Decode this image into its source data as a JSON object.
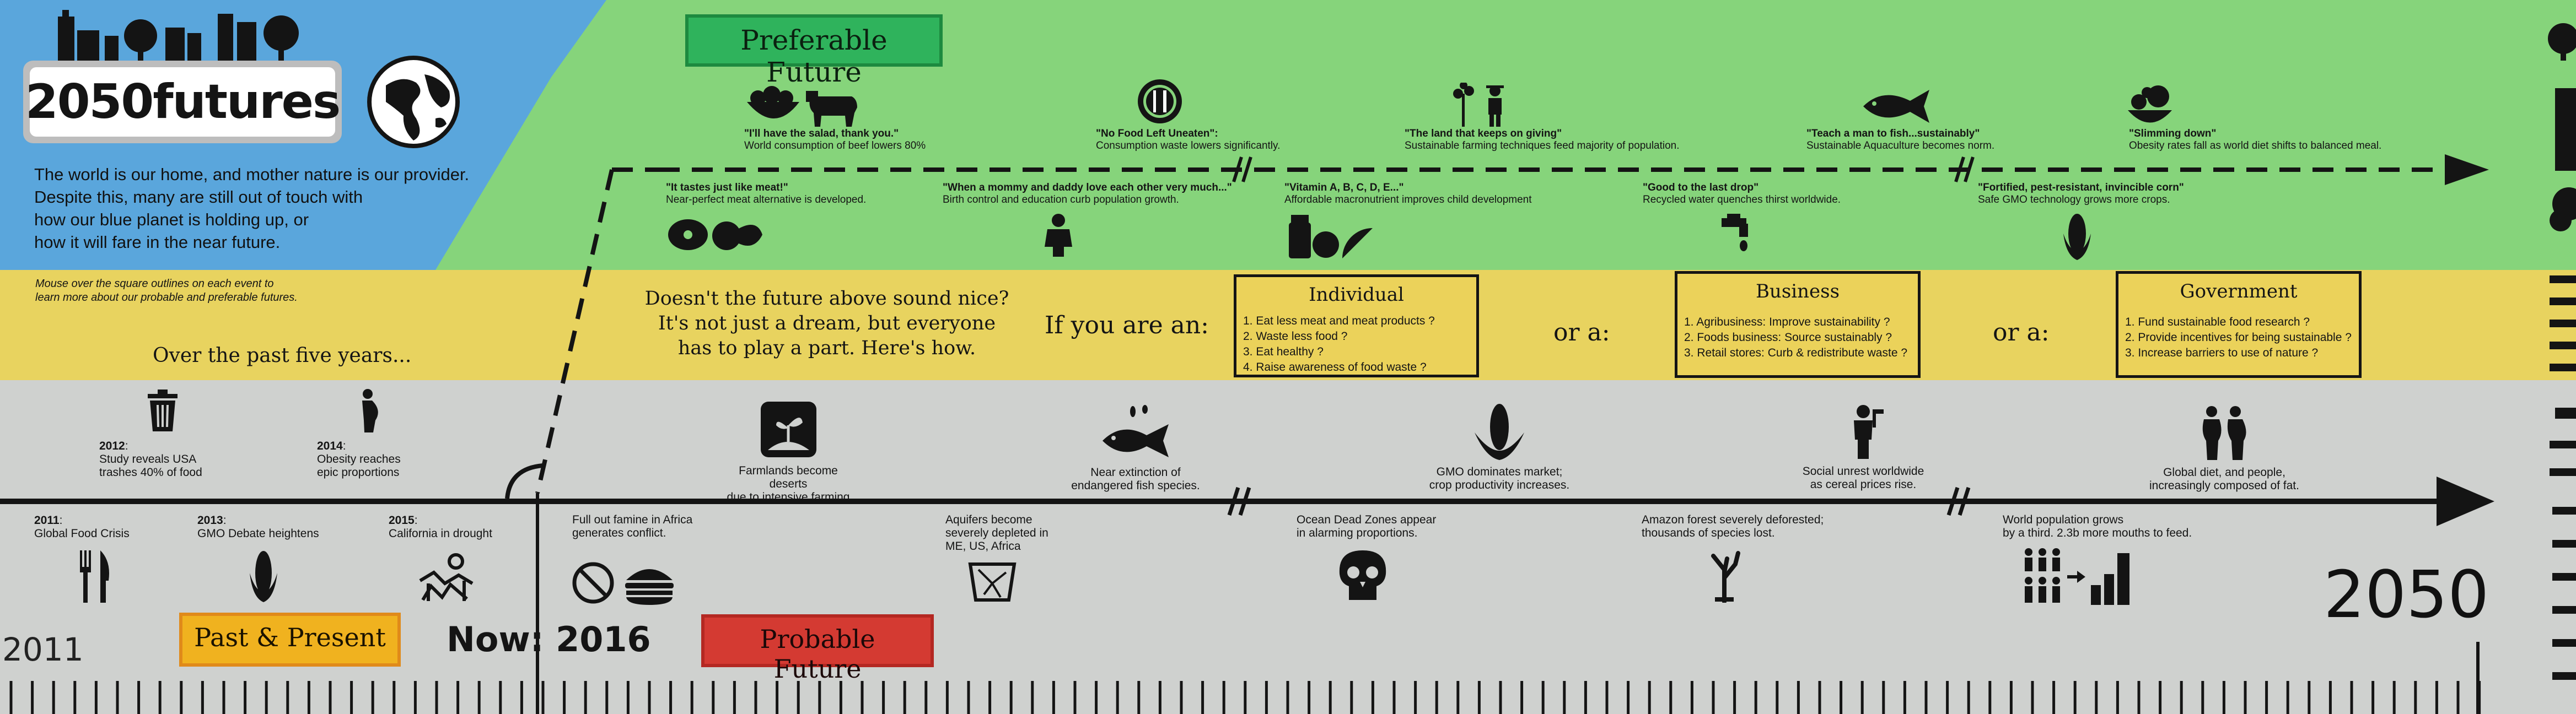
{
  "brand": {
    "title": "2050futures"
  },
  "intro": {
    "line1": "The world is our home, and mother nature is our provider.",
    "line2": "Despite this, many are still out of touch with",
    "line3": "how our blue planet is holding up, or",
    "line4": "how it will fare in the near future."
  },
  "hint": {
    "line1": "Mouse over the square outlines on each event to",
    "line2": "learn more about our probable and preferable futures."
  },
  "labels": {
    "preferable": "Preferable Future",
    "probable": "Probable Future",
    "past": "Past & Present",
    "now": "Now: 2016",
    "start_year": "2011",
    "end_year": "2050",
    "past_five": "Over the past five years..."
  },
  "cta": {
    "line1": "Doesn't the future above sound nice?",
    "line2": "It's not just a dream, but everyone",
    "line3": "has to play a part. Here's how.",
    "if_you_are": "If you are an:",
    "or1": "or a:",
    "or2": "or a:"
  },
  "roles": [
    {
      "title": "Individual",
      "items": [
        "1. Eat less meat and meat products ?",
        "2. Waste less food ?",
        "3. Eat healthy ?",
        "4. Raise awareness of food waste ?"
      ]
    },
    {
      "title": "Business",
      "items": [
        "1. Agribusiness: Improve sustainability ?",
        "2. Foods business: Source sustainably ?",
        "3. Retail stores: Curb & redistribute waste ?"
      ]
    },
    {
      "title": "Government",
      "items": [
        "1. Fund sustainable food research ?",
        "2. Provide incentives for being sustainable ?",
        "3. Increase barriers to use of nature ?"
      ]
    }
  ],
  "preferable_top": [
    {
      "title": "\"I'll have the salad, thank you.\"",
      "desc": "World consumption of beef lowers 80%",
      "icon": "salad-cow-icon"
    },
    {
      "title": "\"No Food Left Uneaten\":",
      "desc": "Consumption waste lowers significantly.",
      "icon": "clean-plate-icon"
    },
    {
      "title": "\"The land that keeps on giving\"",
      "desc": "Sustainable farming techniques feed majority of population.",
      "icon": "farmer-icon"
    },
    {
      "title": "\"Teach a man to fish...sustainably\"",
      "desc": "Sustainable Aquaculture becomes norm.",
      "icon": "fish-icon"
    },
    {
      "title": "\"Slimming down\"",
      "desc": "Obesity rates fall as world diet shifts to balanced meal.",
      "icon": "healthy-food-icon"
    }
  ],
  "preferable_bottom": [
    {
      "title": "\"It tastes just like meat!\"",
      "desc": "Near-perfect meat alternative is developed.",
      "icon": "meat-alternative-icon"
    },
    {
      "title": "\"When a mommy and daddy love each other very much...\"",
      "desc": "Birth control and education curb population growth.",
      "icon": "person-icon"
    },
    {
      "title": "\"Vitamin A, B, C, D, E...\"",
      "desc": "Affordable macronutrient improves child development",
      "icon": "vitamin-fruit-icon"
    },
    {
      "title": "\"Good to the last drop\"",
      "desc": "Recycled water quenches thirst worldwide.",
      "icon": "faucet-icon"
    },
    {
      "title": "\"Fortified, pest-resistant, invincible corn\"",
      "desc": "Safe GMO technology grows more crops.",
      "icon": "corn-icon"
    }
  ],
  "past_above": [
    {
      "year": "2012",
      "line1": "Study reveals USA",
      "line2": "trashes 40% of food",
      "icon": "trash-icon"
    },
    {
      "year": "2014",
      "line1": "Obesity reaches",
      "line2": "epic proportions",
      "icon": "obese-person-icon"
    }
  ],
  "past_below": [
    {
      "year": "2011",
      "line1": "Global Food Crisis",
      "icon": "fork-knife-icon"
    },
    {
      "year": "2013",
      "line1": "GMO Debate heightens",
      "icon": "corn-icon"
    },
    {
      "year": "2015",
      "line1": "California in drought",
      "icon": "drought-icon"
    }
  ],
  "probable_above": [
    {
      "line1": "Farmlands become deserts",
      "line2": "due to intensive farming",
      "icon": "desert-sprout-icon"
    },
    {
      "line1": "Near extinction of",
      "line2": "endangered fish species.",
      "icon": "dying-fish-icon"
    },
    {
      "line1": "GMO dominates market;",
      "line2": "crop productivity increases.",
      "icon": "corn-icon"
    },
    {
      "line1": "Social unrest worldwide",
      "line2": "as cereal prices rise.",
      "icon": "protester-icon"
    },
    {
      "line1": "Global diet, and people,",
      "line2": "increasingly composed of fat.",
      "icon": "obese-couple-icon"
    }
  ],
  "probable_below": [
    {
      "line1": "Full out famine in Africa",
      "line2": "generates conflict.",
      "line3": "",
      "icon": "no-food-burger-icon"
    },
    {
      "line1": "Aquifers become",
      "line2": "severely depleted in",
      "line3": "ME, US, Africa",
      "icon": "cracked-basin-icon"
    },
    {
      "line1": "Ocean Dead Zones appear",
      "line2": "in alarming proportions.",
      "line3": "",
      "icon": "skull-icon"
    },
    {
      "line1": "Amazon forest severely deforested;",
      "line2": "thousands of species lost.",
      "line3": "",
      "icon": "dead-tree-icon"
    },
    {
      "line1": "World population grows",
      "line2": "by a third. 2.3b more mouths to feed.",
      "line3": "",
      "icon": "population-growth-icon"
    }
  ],
  "colors": {
    "green_band": "#86d47b",
    "yellow_band": "#e8d35f",
    "gray_band": "#cfd1cf",
    "blue": "#5aa6dc",
    "preferable_tag": "#2fb35c",
    "probable_tag": "#d43a32",
    "past_tag": "#f0b21f"
  }
}
